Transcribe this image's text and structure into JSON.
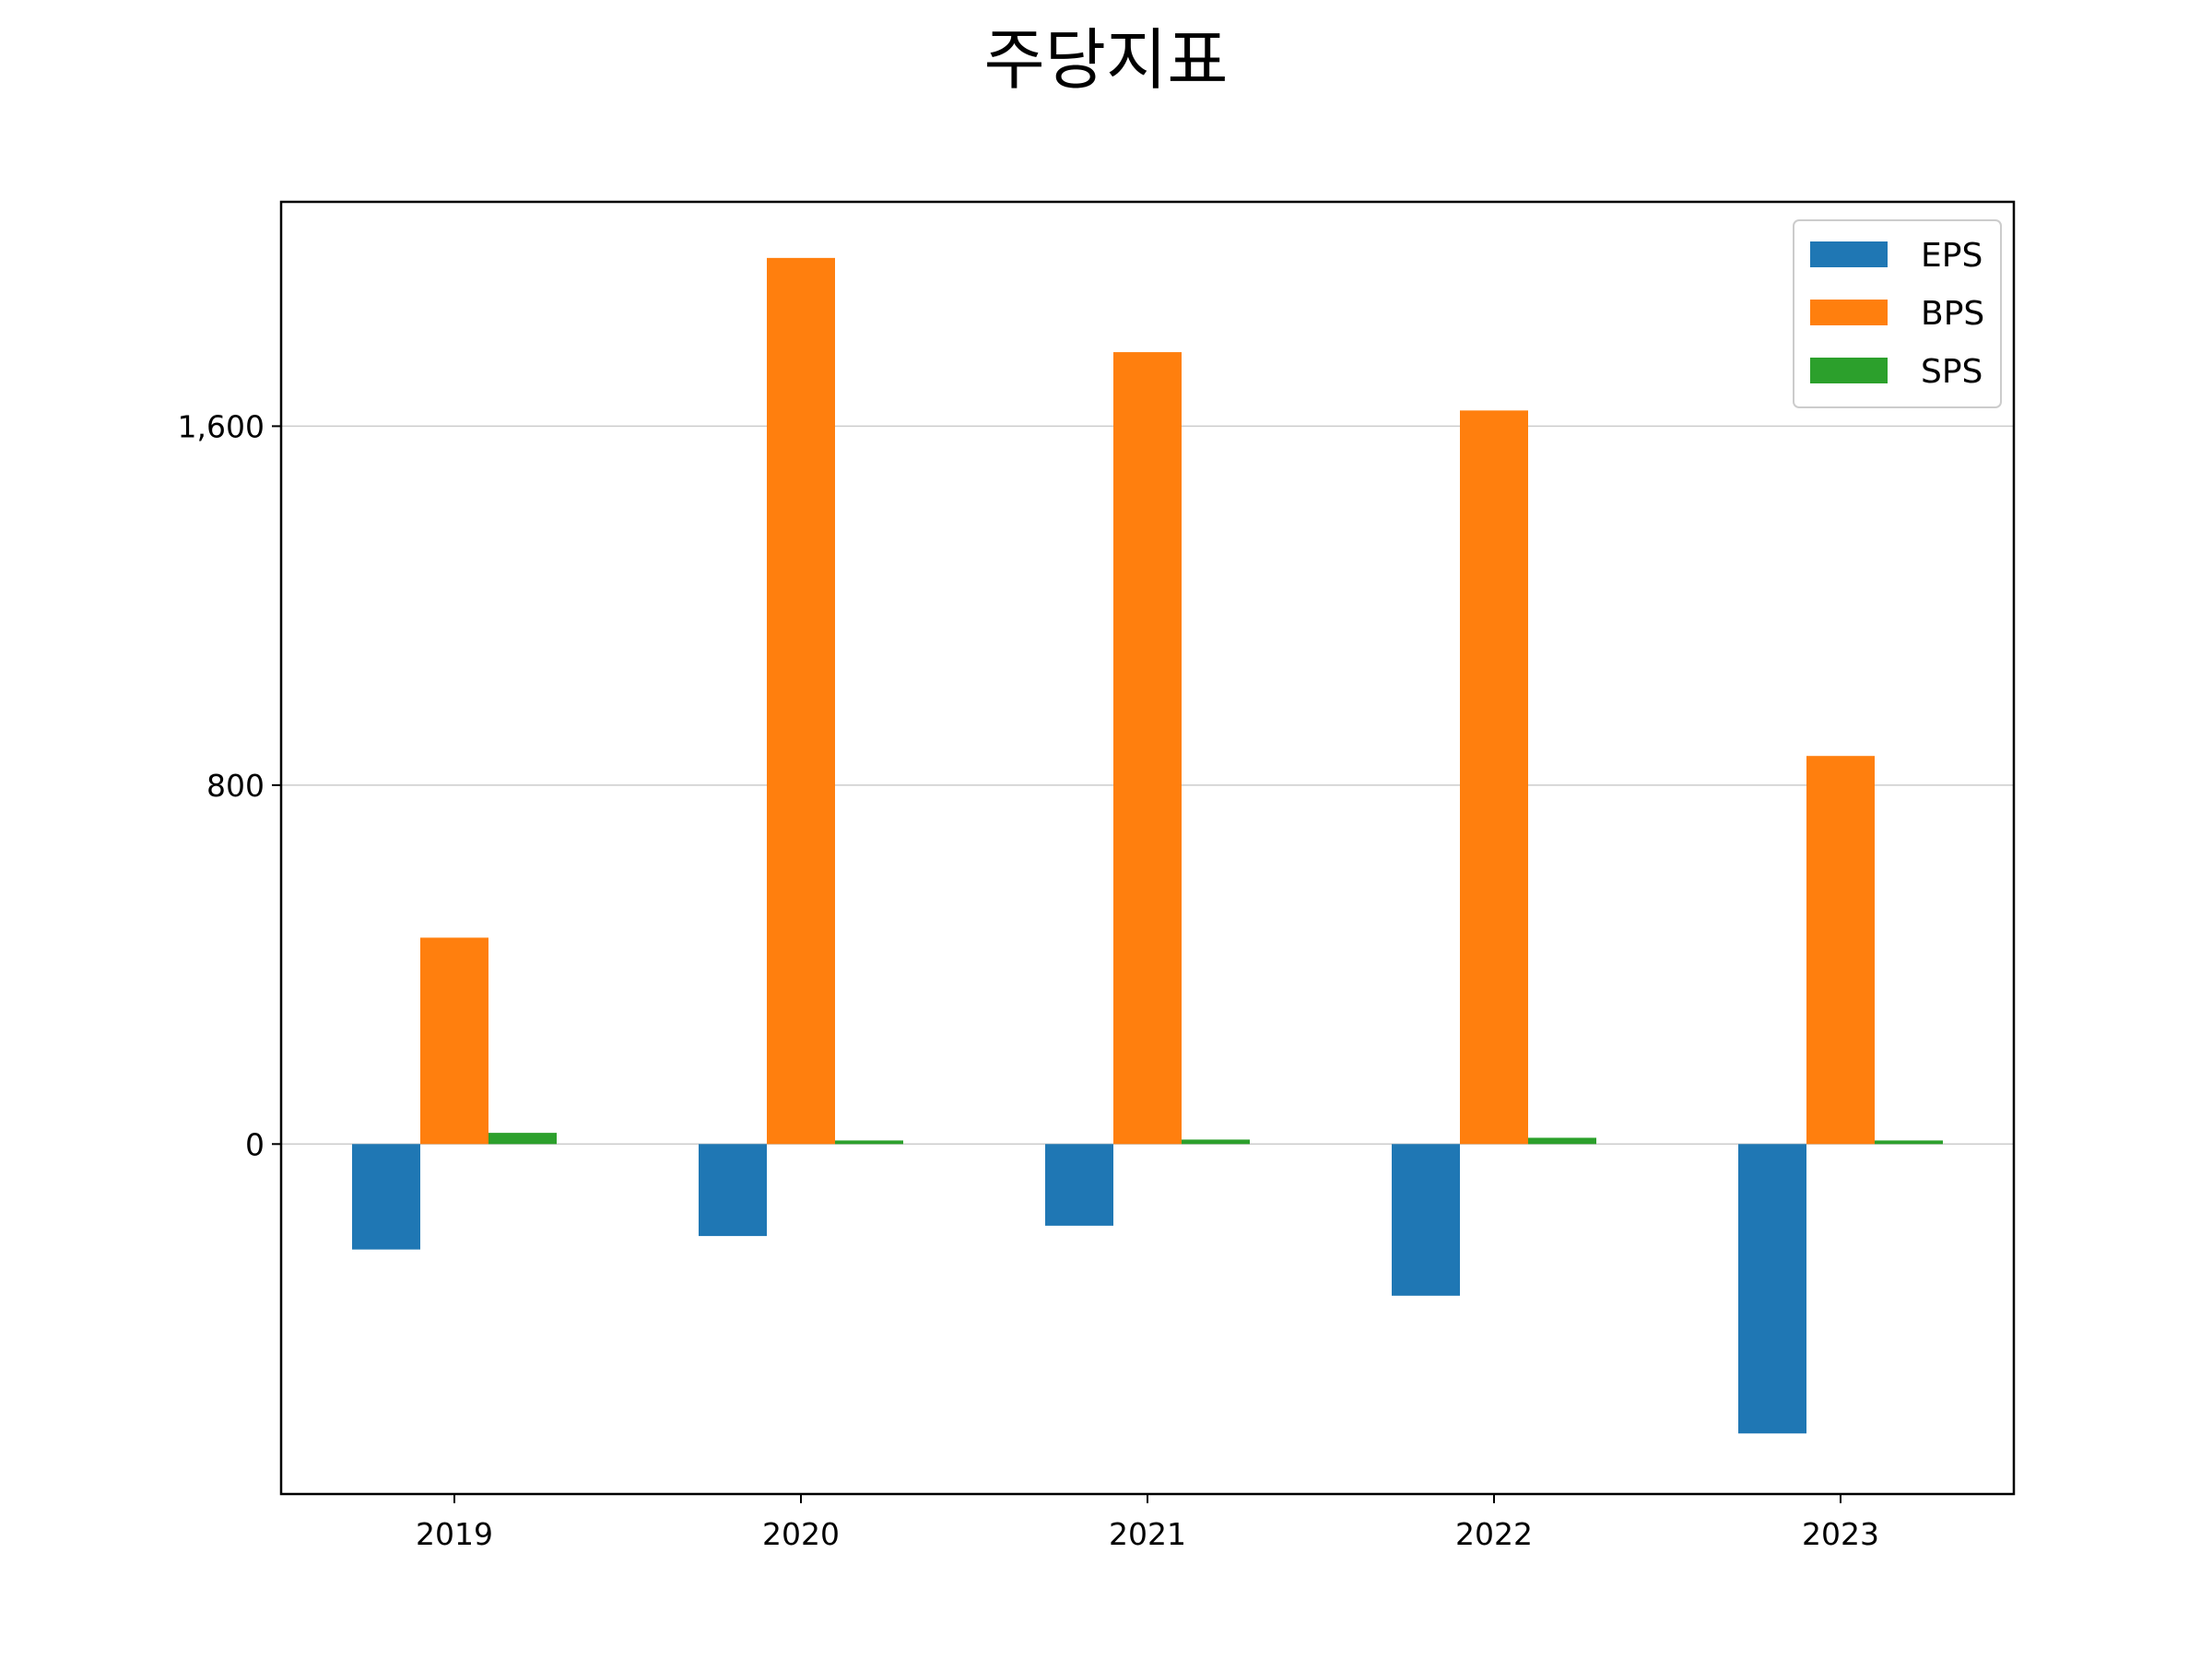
{
  "chart_data": {
    "type": "bar",
    "title": "주당지표",
    "xlabel": "",
    "ylabel": "",
    "categories": [
      "2019",
      "2020",
      "2021",
      "2022",
      "2023"
    ],
    "series": [
      {
        "name": "EPS",
        "color": "#1f77b4",
        "values": [
          -235,
          -205,
          -182,
          -338,
          -645
        ]
      },
      {
        "name": "BPS",
        "color": "#ff7f0e",
        "values": [
          460,
          1975,
          1765,
          1635,
          865
        ]
      },
      {
        "name": "SPS",
        "color": "#2ca02c",
        "values": [
          25,
          8,
          10,
          14,
          8
        ]
      }
    ],
    "yticks": [
      0,
      800,
      1600
    ],
    "ytick_labels": [
      "0",
      "800",
      "1,600"
    ],
    "ylim": [
      -780,
      2100
    ],
    "grid": "y",
    "legend_position": "top-right"
  }
}
